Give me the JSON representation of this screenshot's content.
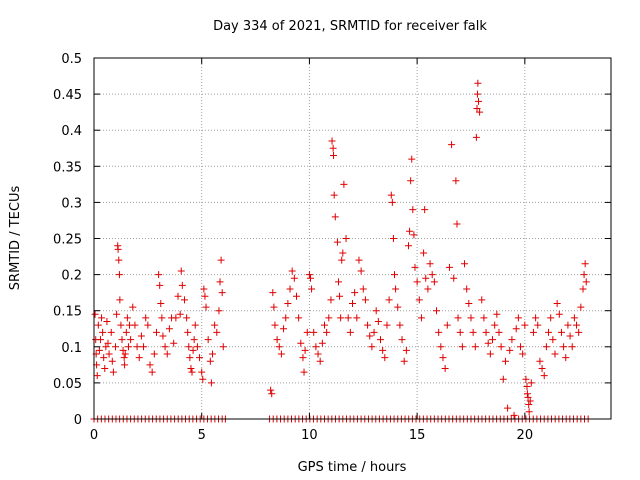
{
  "chart_data": {
    "type": "scatter",
    "title": "Day 334 of 2021, SRMTID for receiver falk",
    "xlabel": "GPS time / hours",
    "ylabel": "SRMTID / TECUs",
    "xlim": [
      0,
      24
    ],
    "ylim": [
      0,
      0.5
    ],
    "x_ticks": [
      0,
      5,
      10,
      15,
      20
    ],
    "x_tick_labels": [
      "0",
      "5",
      "10",
      "15",
      "20"
    ],
    "y_ticks": [
      0,
      0.05,
      0.1,
      0.15,
      0.2,
      0.25,
      0.3,
      0.35,
      0.4,
      0.45,
      0.5
    ],
    "y_tick_labels": [
      "0",
      "0.05",
      "0.1",
      "0.15",
      "0.2",
      "0.25",
      "0.3",
      "0.35",
      "0.4",
      "0.45",
      "0.5"
    ],
    "grid": true,
    "marker": "plus",
    "color": "#e00000",
    "points": [
      [
        0.05,
        0.145
      ],
      [
        0.08,
        0.11
      ],
      [
        0.1,
        0.09
      ],
      [
        0.12,
        0.075
      ],
      [
        0.15,
        0.06
      ],
      [
        0.2,
        0.13
      ],
      [
        0.25,
        0.095
      ],
      [
        0.3,
        0.11
      ],
      [
        0.35,
        0.14
      ],
      [
        0.4,
        0.12
      ],
      [
        0.45,
        0.085
      ],
      [
        0.5,
        0.07
      ],
      [
        0.55,
        0.1
      ],
      [
        0.6,
        0.135
      ],
      [
        0.65,
        0.105
      ],
      [
        0.7,
        0.09
      ],
      [
        0.8,
        0.12
      ],
      [
        0.85,
        0.08
      ],
      [
        0.9,
        0.065
      ],
      [
        1.0,
        0.1
      ],
      [
        1.05,
        0.145
      ],
      [
        1.1,
        0.24
      ],
      [
        1.12,
        0.235
      ],
      [
        1.15,
        0.22
      ],
      [
        1.18,
        0.2
      ],
      [
        1.2,
        0.165
      ],
      [
        1.25,
        0.13
      ],
      [
        1.3,
        0.11
      ],
      [
        1.35,
        0.095
      ],
      [
        1.4,
        0.085
      ],
      [
        1.42,
        0.075
      ],
      [
        1.45,
        0.09
      ],
      [
        1.5,
        0.12
      ],
      [
        1.55,
        0.14
      ],
      [
        1.6,
        0.1
      ],
      [
        1.65,
        0.13
      ],
      [
        1.7,
        0.11
      ],
      [
        1.8,
        0.155
      ],
      [
        1.9,
        0.13
      ],
      [
        2.0,
        0.1
      ],
      [
        2.1,
        0.085
      ],
      [
        2.2,
        0.115
      ],
      [
        2.3,
        0.1
      ],
      [
        2.4,
        0.14
      ],
      [
        2.5,
        0.13
      ],
      [
        2.6,
        0.075
      ],
      [
        2.7,
        0.065
      ],
      [
        2.8,
        0.09
      ],
      [
        2.9,
        0.12
      ],
      [
        3.0,
        0.2
      ],
      [
        3.05,
        0.185
      ],
      [
        3.1,
        0.16
      ],
      [
        3.15,
        0.14
      ],
      [
        3.2,
        0.115
      ],
      [
        3.3,
        0.1
      ],
      [
        3.4,
        0.09
      ],
      [
        3.5,
        0.125
      ],
      [
        3.6,
        0.14
      ],
      [
        3.7,
        0.105
      ],
      [
        3.8,
        0.14
      ],
      [
        3.9,
        0.17
      ],
      [
        4.0,
        0.145
      ],
      [
        4.05,
        0.205
      ],
      [
        4.1,
        0.185
      ],
      [
        4.2,
        0.165
      ],
      [
        4.3,
        0.14
      ],
      [
        4.35,
        0.12
      ],
      [
        4.4,
        0.1
      ],
      [
        4.45,
        0.085
      ],
      [
        4.5,
        0.07
      ],
      [
        4.55,
        0.065
      ],
      [
        4.6,
        0.095
      ],
      [
        4.65,
        0.11
      ],
      [
        4.7,
        0.13
      ],
      [
        4.8,
        0.1
      ],
      [
        4.9,
        0.085
      ],
      [
        5.0,
        0.065
      ],
      [
        5.05,
        0.055
      ],
      [
        5.1,
        0.18
      ],
      [
        5.15,
        0.17
      ],
      [
        5.2,
        0.155
      ],
      [
        5.3,
        0.11
      ],
      [
        5.4,
        0.08
      ],
      [
        5.45,
        0.05
      ],
      [
        5.5,
        0.09
      ],
      [
        5.6,
        0.13
      ],
      [
        5.7,
        0.12
      ],
      [
        5.8,
        0.15
      ],
      [
        5.85,
        0.19
      ],
      [
        5.9,
        0.22
      ],
      [
        5.95,
        0.175
      ],
      [
        6.0,
        0.1
      ],
      [
        8.2,
        0.04
      ],
      [
        8.25,
        0.035
      ],
      [
        8.3,
        0.175
      ],
      [
        8.35,
        0.155
      ],
      [
        8.4,
        0.13
      ],
      [
        8.5,
        0.11
      ],
      [
        8.6,
        0.1
      ],
      [
        8.7,
        0.09
      ],
      [
        8.8,
        0.125
      ],
      [
        8.9,
        0.14
      ],
      [
        9.0,
        0.16
      ],
      [
        9.1,
        0.18
      ],
      [
        9.2,
        0.205
      ],
      [
        9.3,
        0.195
      ],
      [
        9.4,
        0.17
      ],
      [
        9.5,
        0.14
      ],
      [
        9.6,
        0.105
      ],
      [
        9.7,
        0.085
      ],
      [
        9.75,
        0.065
      ],
      [
        9.8,
        0.095
      ],
      [
        9.9,
        0.12
      ],
      [
        10.0,
        0.2
      ],
      [
        10.05,
        0.195
      ],
      [
        10.1,
        0.18
      ],
      [
        10.2,
        0.12
      ],
      [
        10.3,
        0.1
      ],
      [
        10.4,
        0.09
      ],
      [
        10.5,
        0.08
      ],
      [
        10.6,
        0.105
      ],
      [
        10.7,
        0.13
      ],
      [
        10.8,
        0.12
      ],
      [
        10.9,
        0.14
      ],
      [
        11.0,
        0.165
      ],
      [
        11.05,
        0.385
      ],
      [
        11.1,
        0.375
      ],
      [
        11.12,
        0.365
      ],
      [
        11.15,
        0.31
      ],
      [
        11.2,
        0.28
      ],
      [
        11.3,
        0.245
      ],
      [
        11.35,
        0.19
      ],
      [
        11.4,
        0.17
      ],
      [
        11.45,
        0.14
      ],
      [
        11.5,
        0.22
      ],
      [
        11.55,
        0.23
      ],
      [
        11.6,
        0.325
      ],
      [
        11.7,
        0.25
      ],
      [
        11.8,
        0.14
      ],
      [
        11.9,
        0.12
      ],
      [
        12.0,
        0.16
      ],
      [
        12.1,
        0.175
      ],
      [
        12.2,
        0.14
      ],
      [
        12.3,
        0.22
      ],
      [
        12.4,
        0.205
      ],
      [
        12.5,
        0.18
      ],
      [
        12.6,
        0.165
      ],
      [
        12.7,
        0.13
      ],
      [
        12.8,
        0.115
      ],
      [
        12.9,
        0.1
      ],
      [
        13.0,
        0.12
      ],
      [
        13.1,
        0.15
      ],
      [
        13.2,
        0.135
      ],
      [
        13.3,
        0.11
      ],
      [
        13.4,
        0.095
      ],
      [
        13.5,
        0.085
      ],
      [
        13.6,
        0.13
      ],
      [
        13.7,
        0.165
      ],
      [
        13.8,
        0.31
      ],
      [
        13.85,
        0.3
      ],
      [
        13.9,
        0.25
      ],
      [
        13.95,
        0.2
      ],
      [
        14.0,
        0.18
      ],
      [
        14.1,
        0.155
      ],
      [
        14.2,
        0.13
      ],
      [
        14.3,
        0.11
      ],
      [
        14.4,
        0.08
      ],
      [
        14.5,
        0.095
      ],
      [
        14.6,
        0.24
      ],
      [
        14.65,
        0.26
      ],
      [
        14.7,
        0.33
      ],
      [
        14.75,
        0.36
      ],
      [
        14.8,
        0.29
      ],
      [
        14.85,
        0.255
      ],
      [
        14.9,
        0.21
      ],
      [
        15.0,
        0.19
      ],
      [
        15.1,
        0.165
      ],
      [
        15.2,
        0.14
      ],
      [
        15.3,
        0.23
      ],
      [
        15.35,
        0.29
      ],
      [
        15.4,
        0.195
      ],
      [
        15.5,
        0.18
      ],
      [
        15.6,
        0.215
      ],
      [
        15.7,
        0.2
      ],
      [
        15.8,
        0.19
      ],
      [
        15.9,
        0.15
      ],
      [
        16.0,
        0.12
      ],
      [
        16.1,
        0.1
      ],
      [
        16.2,
        0.085
      ],
      [
        16.3,
        0.07
      ],
      [
        16.4,
        0.13
      ],
      [
        16.5,
        0.21
      ],
      [
        16.6,
        0.38
      ],
      [
        16.7,
        0.195
      ],
      [
        16.8,
        0.33
      ],
      [
        16.85,
        0.27
      ],
      [
        16.9,
        0.14
      ],
      [
        17.0,
        0.12
      ],
      [
        17.1,
        0.1
      ],
      [
        17.2,
        0.215
      ],
      [
        17.3,
        0.18
      ],
      [
        17.4,
        0.16
      ],
      [
        17.5,
        0.14
      ],
      [
        17.6,
        0.12
      ],
      [
        17.7,
        0.1
      ],
      [
        17.75,
        0.39
      ],
      [
        17.78,
        0.43
      ],
      [
        17.8,
        0.45
      ],
      [
        17.82,
        0.465
      ],
      [
        17.85,
        0.44
      ],
      [
        17.9,
        0.425
      ],
      [
        18.0,
        0.165
      ],
      [
        18.1,
        0.14
      ],
      [
        18.2,
        0.12
      ],
      [
        18.3,
        0.105
      ],
      [
        18.4,
        0.09
      ],
      [
        18.5,
        0.11
      ],
      [
        18.6,
        0.13
      ],
      [
        18.7,
        0.145
      ],
      [
        18.8,
        0.12
      ],
      [
        18.9,
        0.1
      ],
      [
        19.0,
        0.055
      ],
      [
        19.1,
        0.08
      ],
      [
        19.2,
        0.015
      ],
      [
        19.3,
        0.095
      ],
      [
        19.4,
        0.11
      ],
      [
        19.5,
        0.005
      ],
      [
        19.6,
        0.125
      ],
      [
        19.7,
        0.14
      ],
      [
        19.8,
        0.1
      ],
      [
        19.9,
        0.09
      ],
      [
        20.0,
        0.13
      ],
      [
        20.05,
        0.055
      ],
      [
        20.1,
        0.045
      ],
      [
        20.12,
        0.035
      ],
      [
        20.15,
        0.03
      ],
      [
        20.18,
        0.02
      ],
      [
        20.2,
        0.01
      ],
      [
        20.25,
        0.025
      ],
      [
        20.3,
        0.05
      ],
      [
        20.4,
        0.12
      ],
      [
        20.5,
        0.14
      ],
      [
        20.6,
        0.13
      ],
      [
        20.7,
        0.08
      ],
      [
        20.8,
        0.07
      ],
      [
        20.9,
        0.06
      ],
      [
        21.0,
        0.1
      ],
      [
        21.1,
        0.12
      ],
      [
        21.2,
        0.14
      ],
      [
        21.3,
        0.11
      ],
      [
        21.4,
        0.09
      ],
      [
        21.5,
        0.16
      ],
      [
        21.6,
        0.145
      ],
      [
        21.7,
        0.12
      ],
      [
        21.8,
        0.1
      ],
      [
        21.9,
        0.085
      ],
      [
        22.0,
        0.13
      ],
      [
        22.1,
        0.115
      ],
      [
        22.2,
        0.1
      ],
      [
        22.3,
        0.14
      ],
      [
        22.4,
        0.13
      ],
      [
        22.5,
        0.12
      ],
      [
        22.6,
        0.155
      ],
      [
        22.7,
        0.18
      ],
      [
        22.75,
        0.2
      ],
      [
        22.8,
        0.215
      ],
      [
        22.85,
        0.19
      ]
    ],
    "zero_points": [
      0.0,
      0.17,
      0.34,
      0.51,
      0.68,
      0.85,
      1.02,
      1.19,
      1.36,
      1.53,
      1.7,
      1.87,
      2.04,
      2.21,
      2.38,
      2.55,
      2.72,
      2.89,
      3.06,
      3.23,
      3.4,
      3.57,
      3.74,
      3.91,
      4.08,
      4.25,
      4.42,
      4.59,
      4.76,
      4.93,
      5.1,
      5.27,
      5.44,
      5.61,
      5.78,
      5.95,
      6.1,
      8.15,
      8.32,
      8.49,
      8.66,
      8.83,
      9.0,
      9.17,
      9.34,
      9.51,
      9.68,
      9.85,
      10.02,
      10.19,
      10.36,
      10.53,
      10.7,
      10.87,
      11.04,
      11.21,
      11.38,
      11.55,
      11.72,
      11.89,
      12.06,
      12.23,
      12.4,
      12.57,
      12.74,
      12.91,
      13.08,
      13.25,
      13.42,
      13.59,
      13.76,
      13.93,
      14.1,
      14.27,
      14.44,
      14.61,
      14.78,
      14.95,
      15.12,
      15.29,
      15.46,
      15.63,
      15.8,
      15.97,
      16.14,
      16.31,
      16.48,
      16.65,
      16.82,
      16.99,
      17.16,
      17.33,
      17.5,
      17.67,
      17.84,
      18.01,
      18.18,
      18.35,
      18.52,
      18.69,
      18.86,
      19.03,
      19.2,
      19.37,
      19.54,
      19.71,
      19.88,
      20.05,
      20.22,
      20.39,
      20.56,
      20.73,
      20.9,
      21.07,
      21.24,
      21.41,
      21.58,
      21.75,
      21.92,
      22.09,
      22.26,
      22.43,
      22.6,
      22.77,
      22.94
    ]
  }
}
